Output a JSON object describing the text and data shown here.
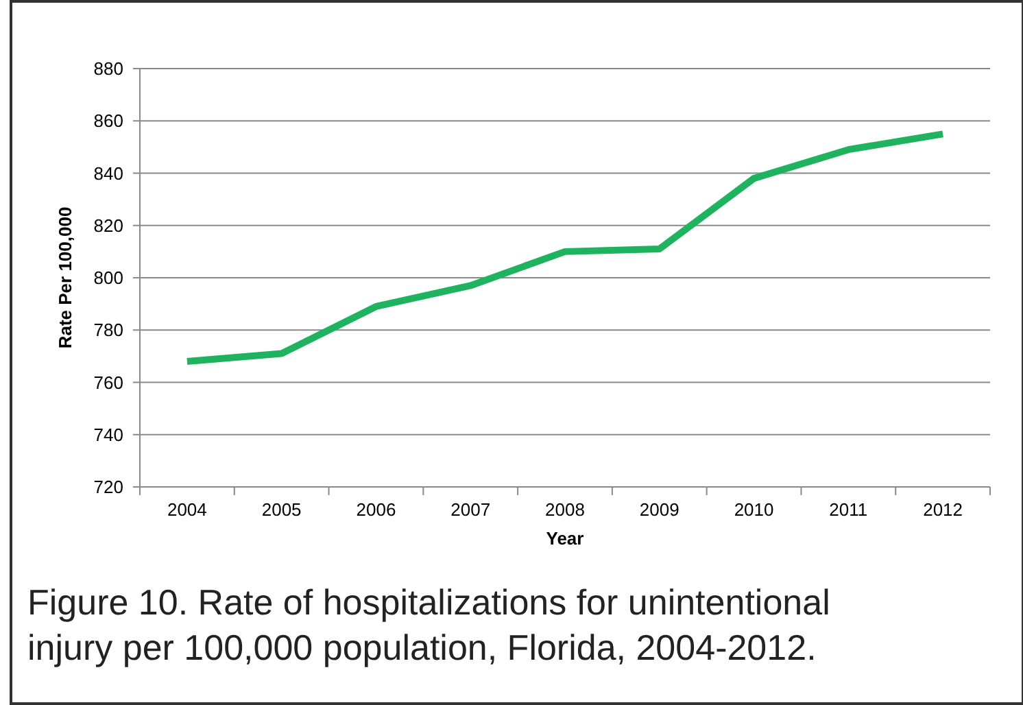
{
  "chart_data": {
    "type": "line",
    "xlabel": "Year",
    "ylabel": "Rate Per 100,000",
    "categories": [
      "2004",
      "2005",
      "2006",
      "2007",
      "2008",
      "2009",
      "2010",
      "2011",
      "2012"
    ],
    "series": [
      {
        "color": "#1fb25f",
        "values": [
          768,
          771,
          789,
          797,
          810,
          811,
          838,
          849,
          855
        ]
      }
    ],
    "ylim": [
      720,
      880
    ],
    "yticks": [
      720,
      740,
      760,
      780,
      800,
      820,
      840,
      860,
      880
    ],
    "grid": "y",
    "annotations": [
      "Figure 10. Rate of hospitalizations for unintentional injury per 100,000 population, Florida, 2004-2012."
    ]
  }
}
